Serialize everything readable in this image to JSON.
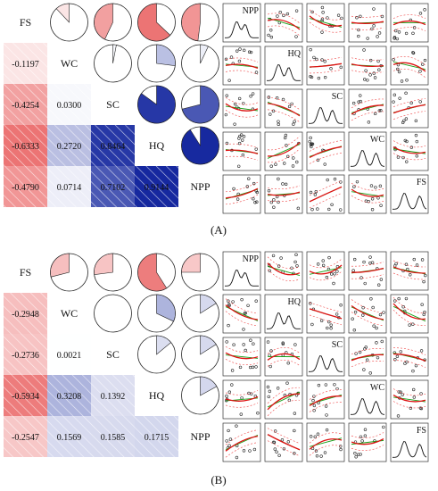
{
  "chart_data": [
    {
      "type": "heatmap",
      "panel_label": "(A)",
      "variables": [
        "FS",
        "WC",
        "SC",
        "HQ",
        "NPP"
      ],
      "lower_correlations": [
        {
          "row": 1,
          "col": 0,
          "value": -0.1197,
          "label": "-0.1197"
        },
        {
          "row": 2,
          "col": 0,
          "value": -0.4254,
          "label": "-0.4254"
        },
        {
          "row": 2,
          "col": 1,
          "value": 0.03,
          "label": "0.0300"
        },
        {
          "row": 3,
          "col": 0,
          "value": -0.6333,
          "label": "-0.6333"
        },
        {
          "row": 3,
          "col": 1,
          "value": 0.272,
          "label": "0.2720"
        },
        {
          "row": 3,
          "col": 2,
          "value": 0.8464,
          "label": "0.8464"
        },
        {
          "row": 4,
          "col": 0,
          "value": -0.479,
          "label": "-0.4790"
        },
        {
          "row": 4,
          "col": 1,
          "value": 0.0714,
          "label": "0.0714"
        },
        {
          "row": 4,
          "col": 2,
          "value": 0.7102,
          "label": "0.7102"
        },
        {
          "row": 4,
          "col": 3,
          "value": 0.9144,
          "label": "0.9144"
        }
      ],
      "upper_pies": [
        {
          "row": 0,
          "col": 1,
          "value": -0.12
        },
        {
          "row": 0,
          "col": 2,
          "value": -0.43
        },
        {
          "row": 0,
          "col": 3,
          "value": -0.63
        },
        {
          "row": 0,
          "col": 4,
          "value": -0.48
        },
        {
          "row": 1,
          "col": 2,
          "value": 0.03
        },
        {
          "row": 1,
          "col": 3,
          "value": 0.27
        },
        {
          "row": 1,
          "col": 4,
          "value": 0.07
        },
        {
          "row": 2,
          "col": 3,
          "value": 0.85
        },
        {
          "row": 2,
          "col": 4,
          "value": 0.71
        },
        {
          "row": 3,
          "col": 4,
          "value": 0.91
        }
      ],
      "scatter_matrix_labels": [
        "NPP",
        "HQ",
        "SC",
        "WC",
        "FS"
      ]
    },
    {
      "type": "heatmap",
      "panel_label": "(B)",
      "variables": [
        "FS",
        "WC",
        "SC",
        "HQ",
        "NPP"
      ],
      "lower_correlations": [
        {
          "row": 1,
          "col": 0,
          "value": -0.2948,
          "label": "-0.2948"
        },
        {
          "row": 2,
          "col": 0,
          "value": -0.2736,
          "label": "-0.2736"
        },
        {
          "row": 2,
          "col": 1,
          "value": 0.0021,
          "label": "0.0021"
        },
        {
          "row": 3,
          "col": 0,
          "value": -0.5934,
          "label": "-0.5934"
        },
        {
          "row": 3,
          "col": 1,
          "value": 0.3208,
          "label": "0.3208"
        },
        {
          "row": 3,
          "col": 2,
          "value": 0.1392,
          "label": "0.1392"
        },
        {
          "row": 4,
          "col": 0,
          "value": -0.2547,
          "label": "-0.2547"
        },
        {
          "row": 4,
          "col": 1,
          "value": 0.1569,
          "label": "0.1569"
        },
        {
          "row": 4,
          "col": 2,
          "value": 0.1585,
          "label": "0.1585"
        },
        {
          "row": 4,
          "col": 3,
          "value": 0.1715,
          "label": "0.1715"
        }
      ],
      "upper_pies": [
        {
          "row": 0,
          "col": 1,
          "value": -0.29
        },
        {
          "row": 0,
          "col": 2,
          "value": -0.27
        },
        {
          "row": 0,
          "col": 3,
          "value": -0.59
        },
        {
          "row": 0,
          "col": 4,
          "value": -0.25
        },
        {
          "row": 1,
          "col": 2,
          "value": 0.0
        },
        {
          "row": 1,
          "col": 3,
          "value": 0.32
        },
        {
          "row": 1,
          "col": 4,
          "value": 0.16
        },
        {
          "row": 2,
          "col": 3,
          "value": 0.14
        },
        {
          "row": 2,
          "col": 4,
          "value": 0.16
        },
        {
          "row": 3,
          "col": 4,
          "value": 0.17
        }
      ],
      "scatter_matrix_labels": [
        "NPP",
        "HQ",
        "SC",
        "WC",
        "FS"
      ]
    }
  ]
}
